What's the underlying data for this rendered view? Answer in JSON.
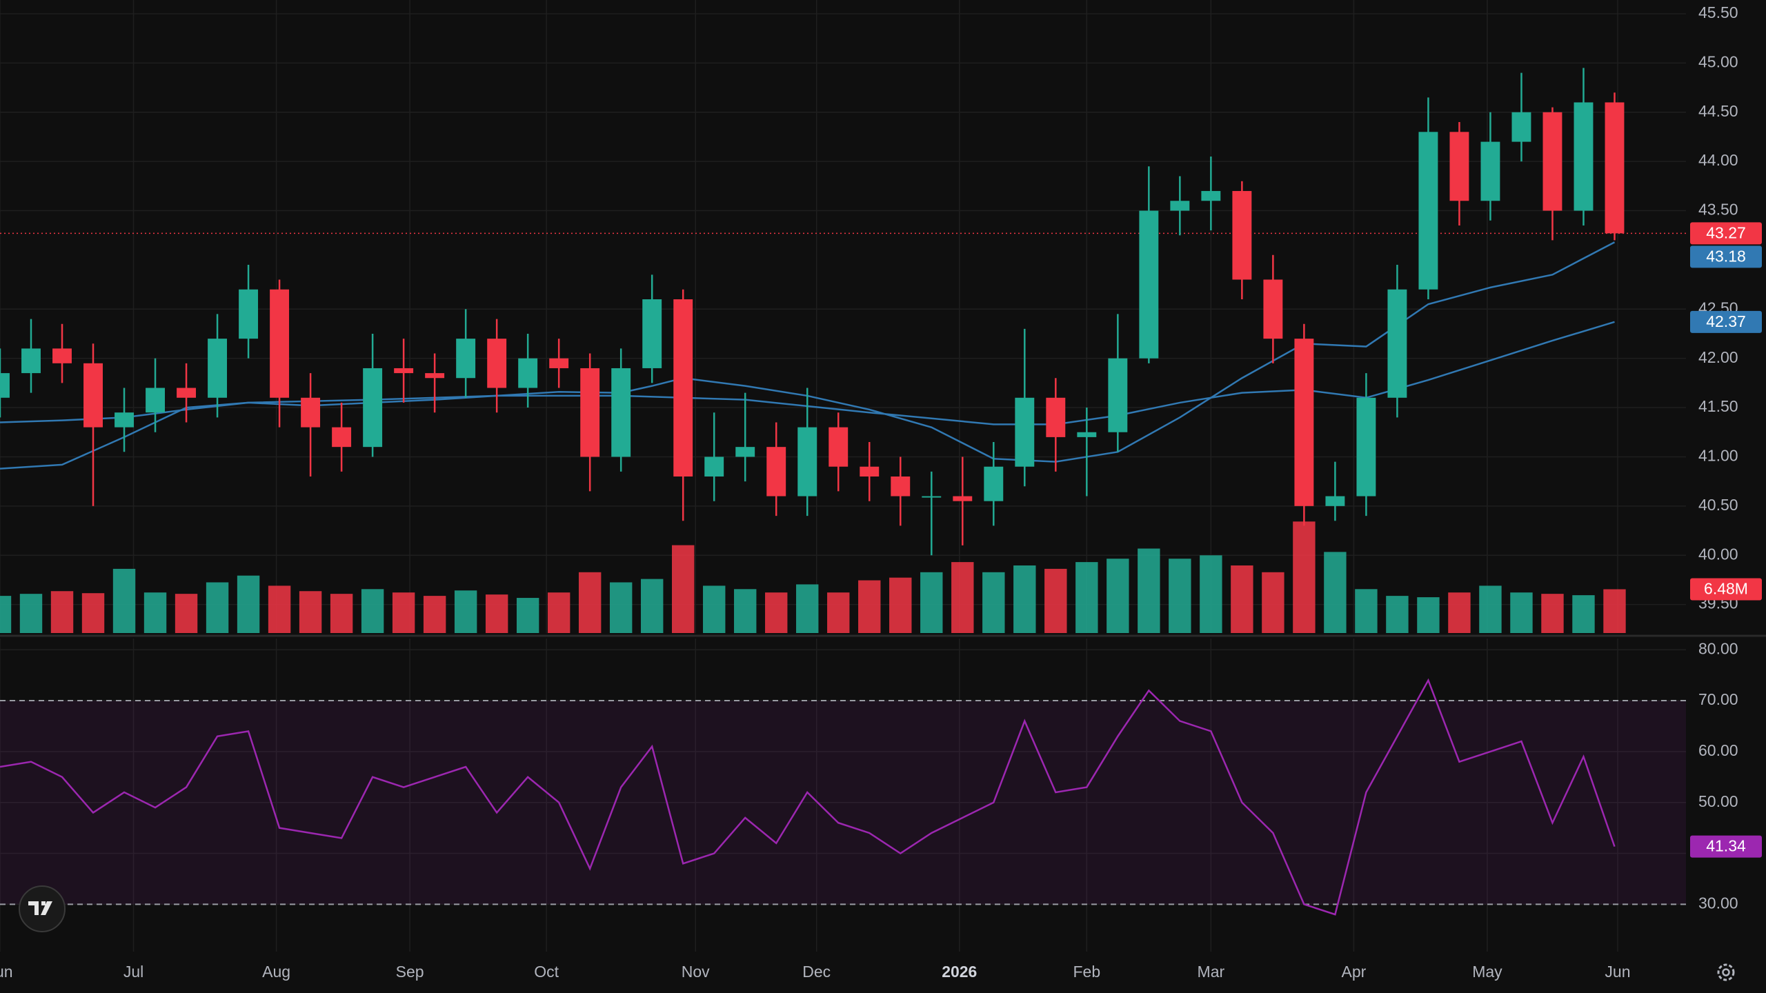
{
  "chart_data": [
    {
      "type": "candlestick",
      "x": [
        0,
        1,
        2,
        3,
        4,
        5,
        6,
        7,
        8,
        9,
        10,
        11,
        12,
        13,
        14,
        15,
        16,
        17,
        18,
        19,
        20,
        21,
        22,
        23,
        24,
        25,
        26,
        27,
        28,
        29,
        30,
        31,
        32,
        33,
        34,
        35,
        36,
        37,
        38,
        39,
        40,
        41,
        42,
        43,
        44,
        45,
        46,
        47,
        48,
        49,
        50,
        51,
        52
      ],
      "open": [
        41.6,
        41.85,
        42.1,
        41.95,
        41.3,
        41.45,
        41.7,
        41.6,
        42.2,
        42.7,
        41.6,
        41.3,
        41.1,
        41.9,
        41.85,
        41.8,
        42.2,
        41.7,
        42.0,
        41.9,
        41.0,
        41.9,
        42.6,
        40.8,
        41.0,
        41.1,
        40.6,
        41.3,
        40.9,
        40.8,
        40.6,
        40.6,
        40.55,
        40.9,
        41.6,
        41.2,
        41.25,
        42.0,
        43.5,
        43.6,
        43.7,
        42.8,
        42.2,
        40.5,
        40.6,
        41.6,
        42.7,
        44.3,
        43.6,
        44.2,
        44.5,
        43.5,
        44.6
      ],
      "high": [
        42.1,
        42.4,
        42.35,
        42.15,
        41.7,
        42.0,
        41.95,
        42.45,
        42.95,
        42.8,
        41.85,
        41.55,
        42.25,
        42.2,
        42.05,
        42.5,
        42.4,
        42.25,
        42.2,
        42.05,
        42.1,
        42.85,
        42.7,
        41.45,
        41.65,
        41.35,
        41.7,
        41.45,
        41.15,
        41.0,
        40.85,
        41.0,
        41.15,
        42.3,
        41.8,
        41.5,
        42.45,
        43.95,
        43.85,
        44.05,
        43.8,
        43.05,
        42.35,
        40.95,
        41.85,
        42.95,
        44.65,
        44.4,
        44.5,
        44.9,
        44.55,
        44.95,
        44.7
      ],
      "low": [
        41.4,
        41.65,
        41.75,
        40.5,
        41.05,
        41.25,
        41.35,
        41.4,
        42.0,
        41.3,
        40.8,
        40.85,
        41.0,
        41.55,
        41.45,
        41.6,
        41.45,
        41.5,
        41.7,
        40.65,
        40.85,
        41.75,
        40.35,
        40.55,
        40.75,
        40.4,
        40.4,
        40.65,
        40.55,
        40.3,
        40.0,
        40.1,
        40.3,
        40.7,
        40.85,
        40.6,
        41.05,
        41.95,
        43.25,
        43.3,
        42.6,
        41.95,
        40.3,
        40.35,
        40.4,
        41.4,
        42.6,
        43.35,
        43.4,
        44.0,
        43.2,
        43.35,
        43.2
      ],
      "close": [
        41.85,
        42.1,
        41.95,
        41.3,
        41.45,
        41.7,
        41.6,
        42.2,
        42.7,
        41.6,
        41.3,
        41.1,
        41.9,
        41.85,
        41.8,
        42.2,
        41.7,
        42.0,
        41.9,
        41.0,
        41.9,
        42.6,
        40.8,
        41.0,
        41.1,
        40.6,
        41.3,
        40.9,
        40.8,
        40.6,
        40.6,
        40.55,
        40.9,
        41.6,
        41.2,
        41.25,
        42.0,
        43.5,
        43.6,
        43.7,
        42.8,
        42.2,
        40.5,
        40.6,
        41.6,
        42.7,
        44.3,
        43.6,
        44.2,
        44.5,
        43.5,
        44.6,
        43.27
      ],
      "up_color": "#22ab94",
      "down_color": "#f23645",
      "ylim": [
        39.21,
        45.64
      ],
      "yticks": [
        {
          "value": 39.5,
          "label": "39.50"
        },
        {
          "value": 40,
          "label": "40.00"
        },
        {
          "value": 40.5,
          "label": "40.50"
        },
        {
          "value": 41,
          "label": "41.00"
        },
        {
          "value": 41.5,
          "label": "41.50"
        },
        {
          "value": 42,
          "label": "42.00"
        },
        {
          "value": 42.5,
          "label": "42.50"
        },
        {
          "value": 43.5,
          "label": "43.50"
        },
        {
          "value": 44,
          "label": "44.00"
        },
        {
          "value": 44.5,
          "label": "44.50"
        },
        {
          "value": 45,
          "label": "45.00"
        },
        {
          "value": 45.5,
          "label": "45.50"
        }
      ],
      "volume": {
        "ylim": [
          0,
          25
        ],
        "values": [
          5.5,
          5.8,
          6.2,
          5.9,
          9.5,
          6.0,
          5.8,
          7.5,
          8.5,
          7.0,
          6.2,
          5.8,
          6.5,
          6.0,
          5.5,
          6.3,
          5.7,
          5.2,
          6.0,
          9.0,
          7.5,
          8.0,
          13.0,
          7.0,
          6.5,
          6.0,
          7.2,
          6.0,
          7.8,
          8.2,
          9.0,
          10.5,
          9.0,
          10.0,
          9.5,
          10.5,
          11.0,
          12.5,
          11.0,
          11.5,
          10.0,
          9.0,
          16.5,
          12.0,
          6.5,
          5.5,
          5.3,
          6.0,
          7.0,
          6.0,
          5.8,
          5.6,
          6.48
        ],
        "value_labels": [
          null,
          null,
          null,
          null,
          null,
          null,
          null,
          null,
          null,
          null,
          null,
          null,
          null,
          null,
          null,
          null,
          null,
          null,
          null,
          null,
          null,
          null,
          null,
          null,
          null,
          null,
          null,
          null,
          null,
          null,
          null,
          null,
          null,
          null,
          null,
          null,
          null,
          null,
          null,
          null,
          null,
          null,
          null,
          null,
          null,
          null,
          null,
          null,
          null,
          null,
          null,
          null,
          "6.48M"
        ]
      },
      "ma": [
        {
          "color": "#3179b3",
          "x": [
            0,
            2,
            4,
            6,
            8,
            10,
            12,
            14,
            16,
            18,
            20,
            21,
            22,
            24,
            26,
            28,
            30,
            32,
            34,
            36,
            38,
            40,
            42,
            44,
            46,
            48,
            50,
            52
          ],
          "values": [
            41.35,
            41.37,
            41.4,
            41.48,
            41.55,
            41.52,
            41.55,
            41.58,
            41.62,
            41.66,
            41.65,
            41.72,
            41.8,
            41.72,
            41.62,
            41.48,
            41.3,
            40.98,
            40.95,
            41.05,
            41.4,
            41.8,
            42.15,
            42.12,
            42.55,
            42.72,
            42.85,
            43.18
          ]
        },
        {
          "color": "#3179b3",
          "x": [
            0,
            2,
            4,
            6,
            8,
            12,
            16,
            20,
            24,
            28,
            32,
            34,
            36,
            38,
            40,
            42,
            44,
            46,
            48,
            50,
            52
          ],
          "values": [
            40.88,
            40.92,
            41.2,
            41.5,
            41.55,
            41.58,
            41.62,
            41.62,
            41.58,
            41.45,
            41.33,
            41.33,
            41.42,
            41.55,
            41.65,
            41.68,
            41.6,
            41.78,
            41.98,
            42.18,
            42.37
          ]
        }
      ]
    },
    {
      "type": "line",
      "color": "#9c27b0",
      "values": [
        57,
        58,
        55,
        48,
        52,
        49,
        53,
        63,
        64,
        45,
        44,
        43,
        55,
        53,
        55,
        57,
        48,
        55,
        50,
        37,
        53,
        61,
        38,
        40,
        47,
        42,
        52,
        46,
        44,
        40,
        44,
        47,
        50,
        66,
        52,
        53,
        63,
        72,
        66,
        64,
        50,
        44,
        30,
        28,
        52,
        63,
        74,
        58,
        60,
        62,
        46,
        59,
        41.34
      ],
      "band": [
        30,
        70
      ],
      "ylim": [
        20.7,
        82.2
      ],
      "yticks": [
        {
          "value": 30,
          "label": "30.00"
        },
        {
          "value": 40,
          "label": "40.00"
        },
        {
          "value": 50,
          "label": "50.00"
        },
        {
          "value": 60,
          "label": "60.00"
        },
        {
          "value": 70,
          "label": "70.00"
        },
        {
          "value": 80,
          "label": "80.00"
        }
      ],
      "xlim": [
        0,
        54.3
      ],
      "xticks": [
        {
          "value": 0,
          "label": "Jun"
        },
        {
          "value": 4.3,
          "label": "Jul"
        },
        {
          "value": 8.9,
          "label": "Aug"
        },
        {
          "value": 13.2,
          "label": "Sep"
        },
        {
          "value": 17.6,
          "label": "Oct"
        },
        {
          "value": 22.4,
          "label": "Nov"
        },
        {
          "value": 26.3,
          "label": "Dec"
        },
        {
          "value": 30.9,
          "label": "2026"
        },
        {
          "value": 35.0,
          "label": "Feb"
        },
        {
          "value": 39.0,
          "label": "Mar"
        },
        {
          "value": 43.6,
          "label": "Apr"
        },
        {
          "value": 47.9,
          "label": "May"
        },
        {
          "value": 52.1,
          "label": "Jun"
        }
      ]
    }
  ]
}
